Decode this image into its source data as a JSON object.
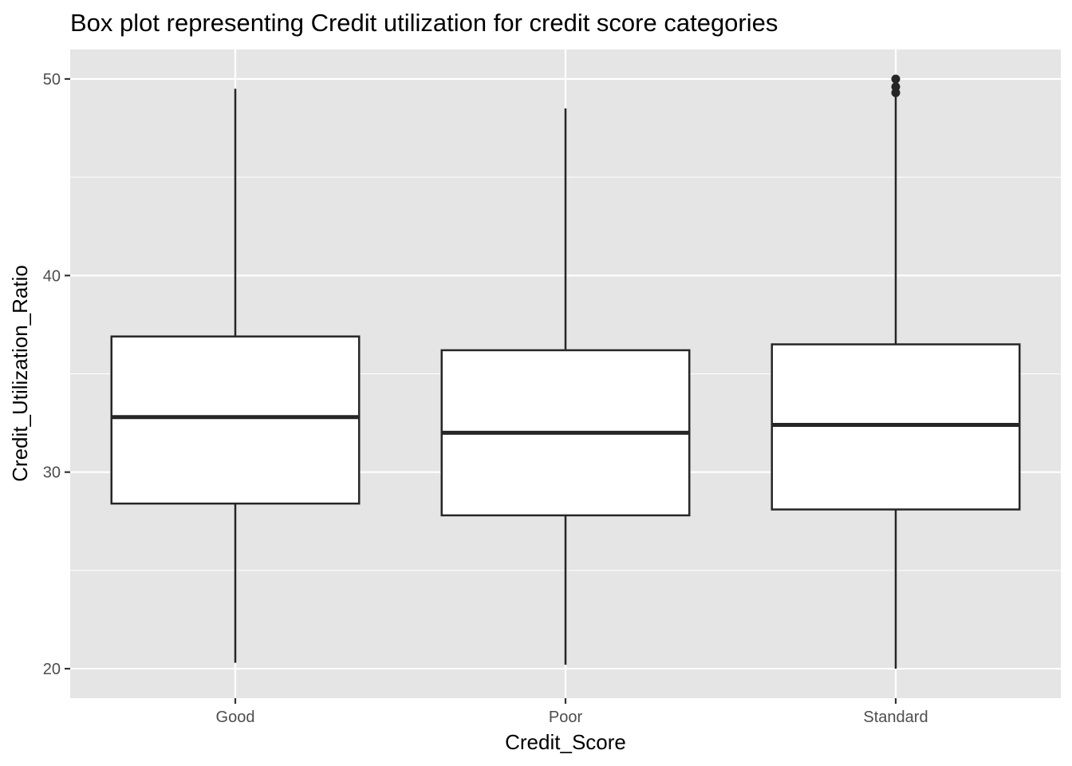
{
  "chart_data": {
    "type": "box",
    "title": "Box plot representing Credit utilization for credit score categories",
    "xlabel": "Credit_Score",
    "ylabel": "Credit_Utilization_Ratio",
    "ylim": [
      18.5,
      51.5
    ],
    "y_ticks": [
      20,
      30,
      40,
      50
    ],
    "grid": true,
    "categories": [
      "Good",
      "Poor",
      "Standard"
    ],
    "boxes": [
      {
        "category": "Good",
        "whisker_low": 20.3,
        "q1": 28.4,
        "median": 32.8,
        "q3": 36.9,
        "whisker_high": 49.5,
        "outliers": []
      },
      {
        "category": "Poor",
        "whisker_low": 20.2,
        "q1": 27.8,
        "median": 32.0,
        "q3": 36.2,
        "whisker_high": 48.5,
        "outliers": []
      },
      {
        "category": "Standard",
        "whisker_low": 20.0,
        "q1": 28.1,
        "median": 32.4,
        "q3": 36.5,
        "whisker_high": 49.1,
        "outliers": [
          49.3,
          49.6,
          50.0
        ]
      }
    ],
    "colors": {
      "panel_background": "#e5e5e5",
      "grid": "#ffffff",
      "box_fill": "#ffffff",
      "box_stroke": "#262626",
      "tick": "#333333"
    }
  }
}
